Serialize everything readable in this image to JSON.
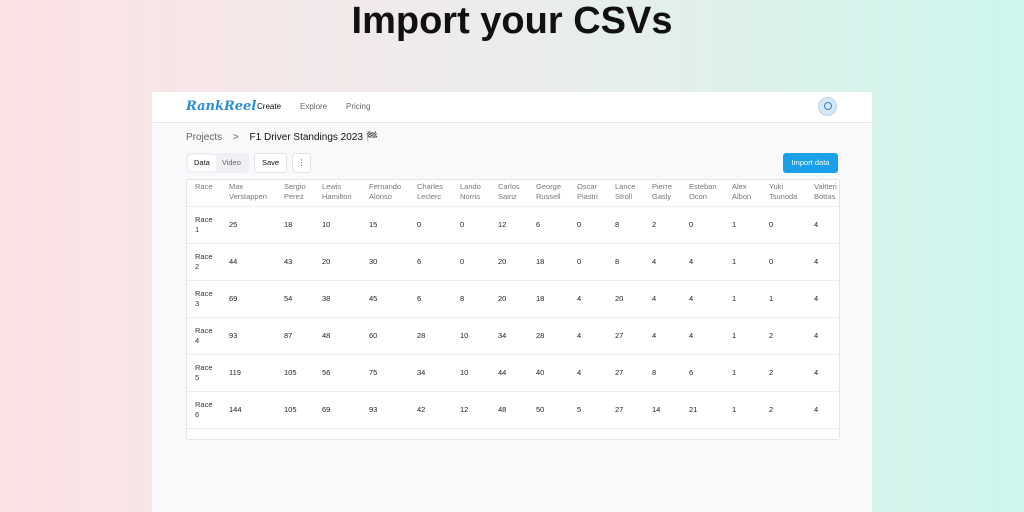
{
  "headline": "Import your CSVs",
  "nav": {
    "logo": "RankReel",
    "links": [
      "Create",
      "Explore",
      "Pricing"
    ]
  },
  "breadcrumb": {
    "parent": "Projects",
    "separator": ">",
    "current": "F1 Driver Standings 2023 🏁"
  },
  "toolbar": {
    "tabs": [
      "Data",
      "Video"
    ],
    "save": "Save",
    "more": "⋮",
    "import": "Import data"
  },
  "table": {
    "columns": [
      "Race",
      "Max Verstappen",
      "Sergio Perez",
      "Lewis Hamilton",
      "Fernando Alonso",
      "Charles Leclerc",
      "Lando Norris",
      "Carlos Sainz",
      "George Russell",
      "Oscar Piastri",
      "Lance Stroll",
      "Pierre Gasly",
      "Esteban Ocon",
      "Alex Albon",
      "Yuki Tsunoda",
      "Valtteri Bottas"
    ],
    "rows": [
      [
        "Race 1",
        25,
        18,
        10,
        15,
        0,
        0,
        12,
        6,
        0,
        8,
        2,
        0,
        1,
        0,
        4
      ],
      [
        "Race 2",
        44,
        43,
        20,
        30,
        6,
        0,
        20,
        18,
        0,
        8,
        4,
        4,
        1,
        0,
        4
      ],
      [
        "Race 3",
        69,
        54,
        38,
        45,
        6,
        8,
        20,
        18,
        4,
        20,
        4,
        4,
        1,
        1,
        4
      ],
      [
        "Race 4",
        93,
        87,
        48,
        60,
        28,
        10,
        34,
        28,
        4,
        27,
        4,
        4,
        1,
        2,
        4
      ],
      [
        "Race 5",
        119,
        105,
        56,
        75,
        34,
        10,
        44,
        40,
        4,
        27,
        8,
        6,
        1,
        2,
        4
      ],
      [
        "Race 6",
        144,
        105,
        69,
        93,
        42,
        12,
        48,
        50,
        5,
        27,
        14,
        21,
        1,
        2,
        4
      ]
    ]
  }
}
